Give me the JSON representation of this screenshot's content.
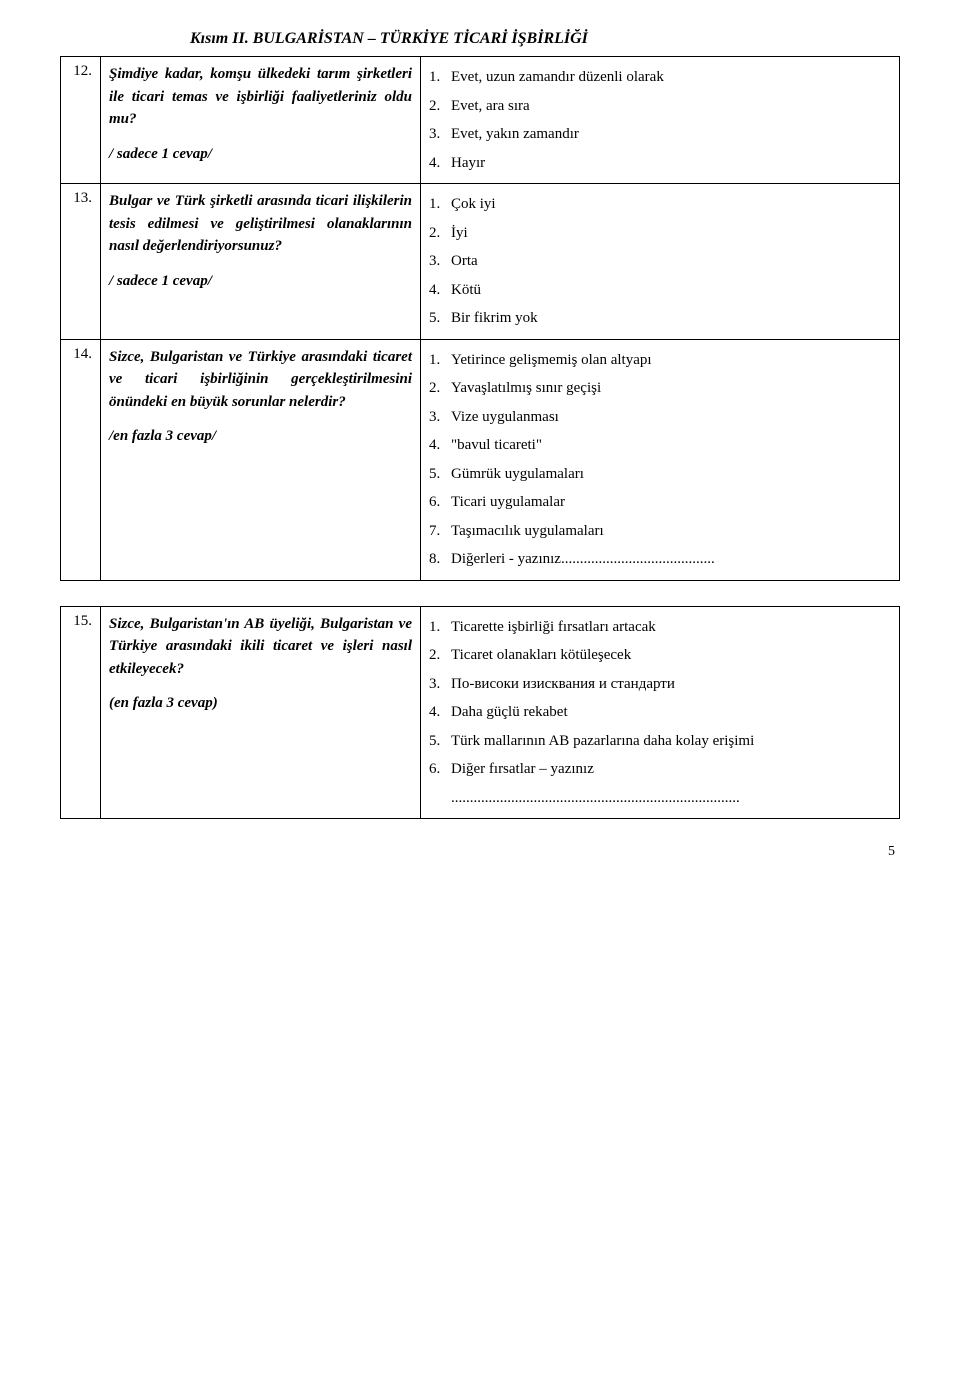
{
  "sectionTitle": "Kısım II. BULGARİSTAN – TÜRKİYE TİCARİ İŞBİRLİĞİ",
  "questions": [
    {
      "num": "12.",
      "text": "Şimdiye kadar, komşu ülkedeki tarım şirketleri ile ticari temas ve işbirliği faaliyetleriniz oldu mu?",
      "note": "/ sadece 1 cevap/",
      "options": [
        {
          "n": "1.",
          "t": "Evet, uzun zamandır düzenli olarak"
        },
        {
          "n": "2.",
          "t": "Evet, ara sıra"
        },
        {
          "n": "3.",
          "t": "Evet, yakın zamandır"
        },
        {
          "n": "4.",
          "t": "Hayır"
        }
      ]
    },
    {
      "num": "13.",
      "text": "Bulgar ve Türk şirketli arasında ticari ilişkilerin tesis edilmesi ve geliştirilmesi olanaklarının nasıl değerlendiriyorsunuz?",
      "note": "/ sadece 1 cevap/",
      "options": [
        {
          "n": "1.",
          "t": "Çok iyi"
        },
        {
          "n": "2.",
          "t": "İyi"
        },
        {
          "n": "3.",
          "t": "Orta"
        },
        {
          "n": "4.",
          "t": "Kötü"
        },
        {
          "n": "5.",
          "t": "Bir fikrim yok"
        }
      ]
    },
    {
      "num": "14.",
      "text": "Sizce, Bulgaristan ve Türkiye arasındaki ticaret ve ticari işbirliğinin gerçekleştirilmesini önündeki en büyük sorunlar nelerdir?",
      "note": "/en fazla 3 cevap/",
      "options": [
        {
          "n": "1.",
          "t": "Yetirince gelişmemiş olan altyapı"
        },
        {
          "n": "2.",
          "t": "Yavaşlatılmış sınır geçişi"
        },
        {
          "n": "3.",
          "t": "Vize uygulanması"
        },
        {
          "n": "4.",
          "t": "\"bavul ticareti\""
        },
        {
          "n": "5.",
          "t": "Gümrük uygulamaları"
        },
        {
          "n": "6.",
          "t": "Ticari uygulamalar"
        },
        {
          "n": "7.",
          "t": "Taşımacılık uygulamaları"
        },
        {
          "n": "8.",
          "t": "Diğerleri - yazınız........................................."
        }
      ]
    }
  ],
  "questions2": [
    {
      "num": "15.",
      "text": "Sizce, Bulgaristan'ın AB üyeliği, Bulgaristan ve Türkiye arasındaki ikili ticaret ve işleri nasıl etkileyecek?",
      "note": "(en fazla 3 cevap)",
      "options": [
        {
          "n": "1.",
          "t": "Ticarette işbirliği fırsatları artacak"
        },
        {
          "n": "2.",
          "t": "Ticaret olanakları kötüleşecek"
        },
        {
          "n": "3.",
          "t": "По-високи изисквания и стандарти"
        },
        {
          "n": "4.",
          "t": "Daha güçlü rekabet"
        },
        {
          "n": "5.",
          "t": "Türk mallarının AB pazarlarına daha kolay erişimi"
        },
        {
          "n": "6.",
          "t": "Diğer fırsatlar – yazınız"
        },
        {
          "n": "",
          "t": "............................................................................."
        }
      ]
    }
  ],
  "pageNumber": "5"
}
